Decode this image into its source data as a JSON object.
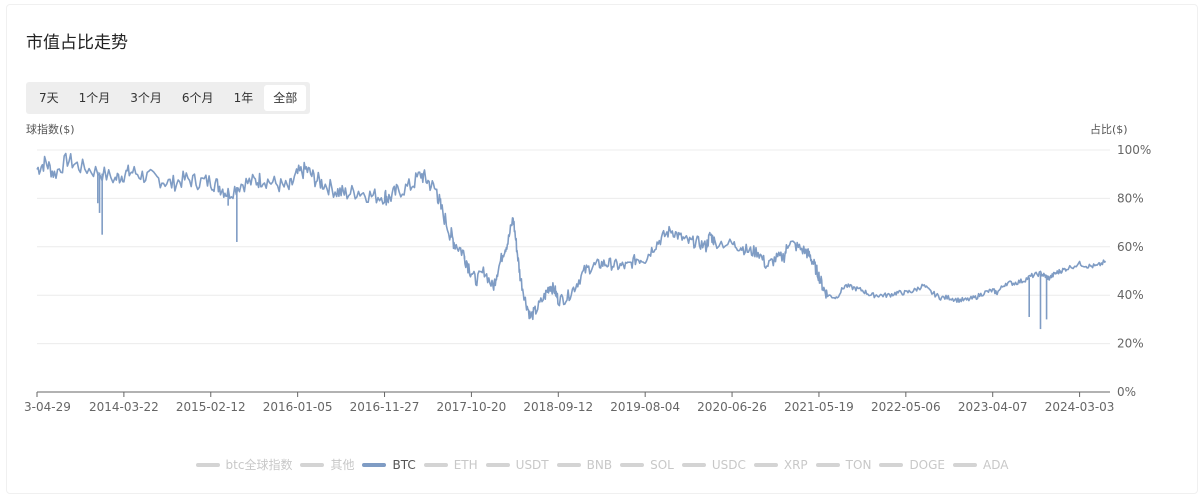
{
  "title": "市值占比走势",
  "range_buttons": [
    {
      "label": "7天",
      "active": false
    },
    {
      "label": "1个月",
      "active": false
    },
    {
      "label": "3个月",
      "active": false
    },
    {
      "label": "6个月",
      "active": false
    },
    {
      "label": "1年",
      "active": false
    },
    {
      "label": "全部",
      "active": true
    }
  ],
  "left_axis_title": "球指数($)",
  "right_axis_title": "占比($)",
  "legend": [
    {
      "label": "btc全球指数",
      "active": false
    },
    {
      "label": "其他",
      "active": false
    },
    {
      "label": "BTC",
      "active": true
    },
    {
      "label": "ETH",
      "active": false
    },
    {
      "label": "USDT",
      "active": false
    },
    {
      "label": "BNB",
      "active": false
    },
    {
      "label": "SOL",
      "active": false
    },
    {
      "label": "USDC",
      "active": false
    },
    {
      "label": "XRP",
      "active": false
    },
    {
      "label": "TON",
      "active": false
    },
    {
      "label": "DOGE",
      "active": false
    },
    {
      "label": "ADA",
      "active": false
    }
  ],
  "colors": {
    "btc_line": "#7f9cc4",
    "grid": "#ececec",
    "axis": "#666666"
  },
  "chart_data": {
    "type": "line",
    "x_tick_labels": [
      "3-04-29",
      "2014-03-22",
      "2015-02-12",
      "2016-01-05",
      "2016-11-27",
      "2017-10-20",
      "2018-09-12",
      "2019-08-04",
      "2020-06-26",
      "2021-05-19",
      "2022-05-06",
      "2023-04-07",
      "2024-03-03"
    ],
    "y_tick_labels": [
      "0%",
      "20%",
      "40%",
      "60%",
      "80%",
      "100%"
    ],
    "ylim": [
      0,
      100
    ],
    "series": [
      {
        "name": "BTC",
        "points": [
          [
            0,
            92
          ],
          [
            0.1,
            95
          ],
          [
            0.2,
            90
          ],
          [
            0.35,
            96
          ],
          [
            0.5,
            93
          ],
          [
            0.7,
            91
          ],
          [
            0.9,
            88
          ],
          [
            1.0,
            90
          ],
          [
            1.1,
            91
          ],
          [
            1.25,
            89
          ],
          [
            1.4,
            88
          ],
          [
            1.55,
            86
          ],
          [
            1.7,
            88
          ],
          [
            1.85,
            87
          ],
          [
            2.0,
            87
          ],
          [
            2.1,
            85
          ],
          [
            2.2,
            82
          ],
          [
            2.35,
            86
          ],
          [
            2.5,
            87
          ],
          [
            2.6,
            88
          ],
          [
            2.75,
            86
          ],
          [
            2.9,
            84
          ],
          [
            3.0,
            90
          ],
          [
            3.1,
            92
          ],
          [
            3.2,
            88
          ],
          [
            3.3,
            86
          ],
          [
            3.45,
            83
          ],
          [
            3.55,
            82
          ],
          [
            3.7,
            83
          ],
          [
            3.85,
            81
          ],
          [
            4.0,
            81
          ],
          [
            4.05,
            80
          ],
          [
            4.15,
            83
          ],
          [
            4.3,
            85
          ],
          [
            4.42,
            90
          ],
          [
            4.5,
            87
          ],
          [
            4.6,
            83
          ],
          [
            4.65,
            76
          ],
          [
            4.75,
            66
          ],
          [
            4.8,
            62
          ],
          [
            4.9,
            58
          ],
          [
            4.97,
            52
          ],
          [
            5.05,
            46
          ],
          [
            5.15,
            50
          ],
          [
            5.25,
            43
          ],
          [
            5.3,
            50
          ],
          [
            5.37,
            58
          ],
          [
            5.42,
            62
          ],
          [
            5.48,
            72
          ],
          [
            5.52,
            60
          ],
          [
            5.56,
            48
          ],
          [
            5.62,
            38
          ],
          [
            5.68,
            31
          ],
          [
            5.75,
            34
          ],
          [
            5.85,
            40
          ],
          [
            5.9,
            44
          ],
          [
            5.96,
            42
          ],
          [
            6.0,
            38
          ],
          [
            6.1,
            39
          ],
          [
            6.2,
            44
          ],
          [
            6.3,
            50
          ],
          [
            6.4,
            52
          ],
          [
            6.5,
            53
          ],
          [
            6.6,
            53
          ],
          [
            6.7,
            52
          ],
          [
            6.8,
            52
          ],
          [
            6.9,
            55
          ],
          [
            7.0,
            55
          ],
          [
            7.1,
            60
          ],
          [
            7.2,
            64
          ],
          [
            7.3,
            67
          ],
          [
            7.4,
            64
          ],
          [
            7.5,
            62
          ],
          [
            7.6,
            62
          ],
          [
            7.7,
            60
          ],
          [
            7.75,
            65
          ],
          [
            7.8,
            62
          ],
          [
            8.0,
            61
          ],
          [
            8.1,
            60
          ],
          [
            8.2,
            58
          ],
          [
            8.3,
            58
          ],
          [
            8.4,
            52
          ],
          [
            8.5,
            55
          ],
          [
            8.6,
            56
          ],
          [
            8.65,
            62
          ],
          [
            8.75,
            60
          ],
          [
            8.85,
            58
          ],
          [
            8.9,
            56
          ],
          [
            8.95,
            52
          ],
          [
            9.0,
            48
          ],
          [
            9.05,
            43
          ],
          [
            9.1,
            40
          ],
          [
            9.2,
            39
          ],
          [
            9.3,
            44
          ],
          [
            9.4,
            43
          ],
          [
            9.5,
            42
          ],
          [
            9.6,
            40
          ],
          [
            9.7,
            40
          ],
          [
            9.8,
            40
          ],
          [
            9.9,
            41
          ],
          [
            10.0,
            41
          ],
          [
            10.1,
            42
          ],
          [
            10.2,
            44
          ],
          [
            10.3,
            41
          ],
          [
            10.4,
            39
          ],
          [
            10.5,
            39
          ],
          [
            10.6,
            38
          ],
          [
            10.7,
            38
          ],
          [
            10.8,
            39
          ],
          [
            10.9,
            41
          ],
          [
            11.0,
            42
          ],
          [
            11.05,
            41
          ],
          [
            11.15,
            45
          ],
          [
            11.25,
            45
          ],
          [
            11.35,
            46
          ],
          [
            11.45,
            48
          ],
          [
            11.55,
            49
          ],
          [
            11.6,
            48
          ],
          [
            11.65,
            47
          ],
          [
            11.72,
            49
          ],
          [
            11.78,
            50
          ],
          [
            11.85,
            51
          ],
          [
            12.0,
            53
          ],
          [
            12.1,
            52
          ],
          [
            12.2,
            52
          ],
          [
            12.3,
            54
          ]
        ]
      }
    ],
    "spikes": [
      {
        "x": 0.7,
        "low": 78
      },
      {
        "x": 0.72,
        "low": 74
      },
      {
        "x": 0.75,
        "low": 65
      },
      {
        "x": 2.2,
        "low": 77
      },
      {
        "x": 2.3,
        "low": 62
      },
      {
        "x": 4.92,
        "low": 55
      },
      {
        "x": 11.42,
        "low": 31
      },
      {
        "x": 11.55,
        "low": 26
      },
      {
        "x": 11.62,
        "low": 30
      }
    ]
  }
}
